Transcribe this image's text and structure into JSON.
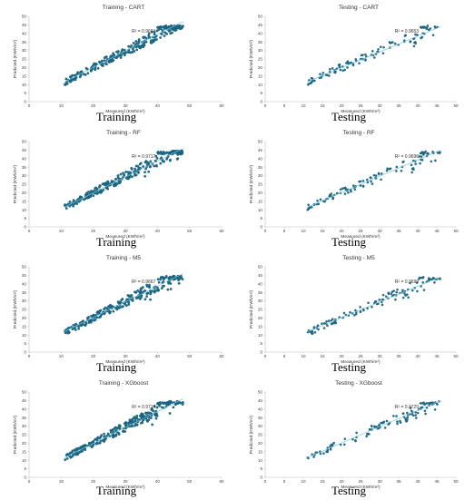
{
  "caption_training": "Training",
  "caption_testing": "Testing",
  "colors": {
    "point": "#1f6f8b",
    "point_edge": "#0d4f66",
    "trend": "#7cc4e8",
    "axis": "#bfbfbf"
  },
  "chart_data": [
    {
      "type": "scatter",
      "title": "Training - CART",
      "xlabel": "Measured (KWh/m²)",
      "ylabel": "Predicted (KWh/m²)",
      "xlim": [
        0,
        60
      ],
      "ylim": [
        0,
        50
      ],
      "xticks": [
        0,
        10,
        20,
        30,
        40,
        50,
        60
      ],
      "yticks": [
        0,
        5,
        10,
        15,
        20,
        25,
        30,
        35,
        40,
        45,
        50
      ],
      "r2": "R² = 0.9694",
      "n_points": 260,
      "trend": [
        [
          11,
          11.5
        ],
        [
          48,
          47
        ]
      ]
    },
    {
      "type": "scatter",
      "title": "Testing - CART",
      "xlabel": "Measured (KWh/m²)",
      "ylabel": "Predicted (KWh/m²)",
      "xlim": [
        0,
        50
      ],
      "ylim": [
        0,
        50
      ],
      "xticks": [
        0,
        5,
        10,
        15,
        20,
        25,
        30,
        35,
        40,
        45,
        50
      ],
      "yticks": [
        0,
        5,
        10,
        15,
        20,
        25,
        30,
        35,
        40,
        45,
        50
      ],
      "r2": "R² = 0.9653",
      "n_points": 110,
      "trend": [
        [
          11,
          11.5
        ],
        [
          46,
          44
        ]
      ]
    },
    {
      "type": "scatter",
      "title": "Training - RF",
      "xlabel": "Measured (KWh/m²)",
      "ylabel": "Predicted (KWh/m²)",
      "xlim": [
        0,
        60
      ],
      "ylim": [
        0,
        50
      ],
      "xticks": [
        0,
        10,
        20,
        30,
        40,
        50,
        60
      ],
      "yticks": [
        0,
        5,
        10,
        15,
        20,
        25,
        30,
        35,
        40,
        45,
        50
      ],
      "r2": "R² = 0.9717",
      "n_points": 260,
      "trend": [
        [
          11,
          11.5
        ],
        [
          48,
          46
        ]
      ]
    },
    {
      "type": "scatter",
      "title": "Testing - RF",
      "xlabel": "Measured (KWh/m²)",
      "ylabel": "Predicted (KWh/m²)",
      "xlim": [
        0,
        50
      ],
      "ylim": [
        0,
        50
      ],
      "xticks": [
        0,
        5,
        10,
        15,
        20,
        25,
        30,
        35,
        40,
        45,
        50
      ],
      "yticks": [
        0,
        5,
        10,
        15,
        20,
        25,
        30,
        35,
        40,
        45,
        50
      ],
      "r2": "R² = 0.9696",
      "n_points": 110,
      "trend": [
        [
          11,
          11.5
        ],
        [
          46,
          45
        ]
      ]
    },
    {
      "type": "scatter",
      "title": "Training - M5",
      "xlabel": "Measured (KWh/m²)",
      "ylabel": "Predicted (KWh/m²)",
      "xlim": [
        0,
        60
      ],
      "ylim": [
        0,
        50
      ],
      "xticks": [
        0,
        10,
        20,
        30,
        40,
        50,
        60
      ],
      "yticks": [
        0,
        5,
        10,
        15,
        20,
        25,
        30,
        35,
        40,
        45,
        50
      ],
      "r2": "R² = 0.9667",
      "n_points": 260,
      "trend": [
        [
          11,
          12
        ],
        [
          48,
          46
        ]
      ]
    },
    {
      "type": "scatter",
      "title": "Testing - M5",
      "xlabel": "Measured (KWh/m²)",
      "ylabel": "Predicted (KWh/m²)",
      "xlim": [
        0,
        50
      ],
      "ylim": [
        0,
        50
      ],
      "xticks": [
        0,
        5,
        10,
        15,
        20,
        25,
        30,
        35,
        40,
        45,
        50
      ],
      "yticks": [
        0,
        5,
        10,
        15,
        20,
        25,
        30,
        35,
        40,
        45,
        50
      ],
      "r2": "R² = 0.9699",
      "n_points": 110,
      "trend": [
        [
          11,
          12
        ],
        [
          46,
          44
        ]
      ]
    },
    {
      "type": "scatter",
      "title": "Training - XGboost",
      "xlabel": "Measured (KWh/m²)",
      "ylabel": "Predicted (KWh/m²)",
      "xlim": [
        0,
        60
      ],
      "ylim": [
        0,
        50
      ],
      "xticks": [
        0,
        10,
        20,
        30,
        40,
        50,
        60
      ],
      "yticks": [
        0,
        5,
        10,
        15,
        20,
        25,
        30,
        35,
        40,
        45,
        50
      ],
      "r2": "R² = 0.9714",
      "n_points": 260,
      "trend": [
        [
          11,
          11.5
        ],
        [
          48,
          46
        ]
      ]
    },
    {
      "type": "scatter",
      "title": "Testing - XGboost",
      "xlabel": "Measured (KWh/m²)",
      "ylabel": "Predicted (KWh/m²)",
      "xlim": [
        0,
        50
      ],
      "ylim": [
        0,
        50
      ],
      "xticks": [
        0,
        5,
        10,
        15,
        20,
        25,
        30,
        35,
        40,
        45,
        50
      ],
      "yticks": [
        0,
        5,
        10,
        15,
        20,
        25,
        30,
        35,
        40,
        45,
        50
      ],
      "r2": "R² = 0.9729",
      "n_points": 110,
      "trend": [
        [
          11,
          11.5
        ],
        [
          46,
          45
        ]
      ]
    }
  ]
}
